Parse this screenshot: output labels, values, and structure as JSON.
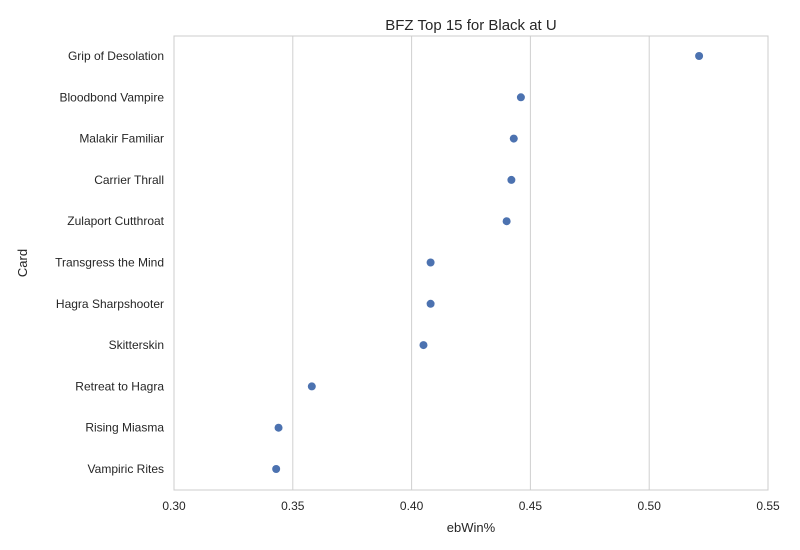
{
  "chart_data": {
    "type": "scatter",
    "title": "BFZ Top 15 for Black at U",
    "xlabel": "ebWin%",
    "ylabel": "Card",
    "xlim": [
      0.3,
      0.55
    ],
    "xticks": [
      "0.30",
      "0.35",
      "0.40",
      "0.45",
      "0.50",
      "0.55"
    ],
    "grid": "vertical",
    "legend": "none",
    "categories": [
      "Grip of Desolation",
      "Bloodbond Vampire",
      "Malakir Familiar",
      "Carrier Thrall",
      "Zulaport Cutthroat",
      "Transgress the Mind",
      "Hagra Sharpshooter",
      "Skitterskin",
      "Retreat to Hagra",
      "Rising Miasma",
      "Vampiric Rites"
    ],
    "values": [
      0.521,
      0.446,
      0.443,
      0.442,
      0.44,
      0.408,
      0.408,
      0.405,
      0.358,
      0.344,
      0.343
    ],
    "point_color": "#4c72b0"
  }
}
